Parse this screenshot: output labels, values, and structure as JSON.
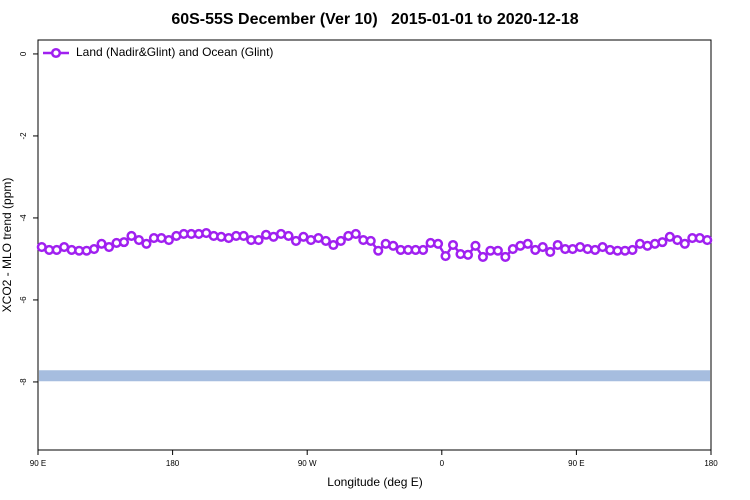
{
  "chart_data": {
    "type": "line",
    "title": "60S-55S December (Ver 10)   2015-01-01 to 2020-12-18",
    "xlabel": "Longitude (deg E)",
    "ylabel": "XCO2 - MLO trend (ppm)",
    "xlim": [
      90,
      540
    ],
    "ylim": [
      -9.66,
      0.34
    ],
    "xticks": [
      {
        "value": 90,
        "label": "90 E"
      },
      {
        "value": 180,
        "label": "180"
      },
      {
        "value": 270,
        "label": "90 W"
      },
      {
        "value": 360,
        "label": "0"
      },
      {
        "value": 450,
        "label": "90 E"
      },
      {
        "value": 540,
        "label": "180"
      }
    ],
    "yticks": [
      0,
      -2,
      -4,
      -6,
      -8
    ],
    "legend": "top-left",
    "band": {
      "value": -7.85,
      "color": "#a6bddf"
    },
    "x": [
      92.5,
      97.5,
      102.5,
      107.5,
      112.5,
      117.5,
      122.5,
      127.5,
      132.5,
      137.5,
      142.5,
      147.5,
      152.5,
      157.5,
      162.5,
      167.5,
      172.5,
      177.5,
      182.5,
      187.5,
      192.5,
      197.5,
      202.5,
      207.5,
      212.5,
      217.5,
      222.5,
      227.5,
      232.5,
      237.5,
      242.5,
      247.5,
      252.5,
      257.5,
      262.5,
      267.5,
      272.5,
      277.5,
      282.5,
      287.5,
      292.5,
      297.5,
      302.5,
      307.5,
      312.5,
      317.5,
      322.5,
      327.5,
      332.5,
      337.5,
      342.5,
      347.5,
      352.5,
      357.5,
      362.5,
      367.5,
      372.5,
      377.5,
      382.5,
      387.5,
      392.5,
      397.5,
      402.5,
      407.5,
      412.5,
      417.5,
      422.5,
      427.5,
      432.5,
      437.5,
      442.5,
      447.5,
      452.5,
      457.5,
      462.5,
      467.5,
      472.5,
      477.5,
      482.5,
      487.5,
      492.5,
      497.5,
      502.5,
      507.5,
      512.5,
      517.5,
      522.5,
      527.5,
      532.5,
      537.5
    ],
    "series": [
      {
        "name": "Land (Nadir&Glint) and Ocean (Glint)",
        "color": "#a020f0",
        "values": [
          -4.71,
          -4.78,
          -4.78,
          -4.71,
          -4.78,
          -4.8,
          -4.8,
          -4.76,
          -4.63,
          -4.71,
          -4.61,
          -4.59,
          -4.44,
          -4.54,
          -4.63,
          -4.49,
          -4.49,
          -4.54,
          -4.44,
          -4.39,
          -4.39,
          -4.39,
          -4.37,
          -4.44,
          -4.46,
          -4.49,
          -4.44,
          -4.44,
          -4.54,
          -4.54,
          -4.41,
          -4.46,
          -4.39,
          -4.44,
          -4.56,
          -4.46,
          -4.54,
          -4.49,
          -4.56,
          -4.66,
          -4.56,
          -4.44,
          -4.39,
          -4.54,
          -4.56,
          -4.8,
          -4.63,
          -4.68,
          -4.78,
          -4.78,
          -4.78,
          -4.78,
          -4.61,
          -4.63,
          -4.93,
          -4.66,
          -4.88,
          -4.9,
          -4.68,
          -4.95,
          -4.8,
          -4.8,
          -4.95,
          -4.76,
          -4.68,
          -4.63,
          -4.78,
          -4.71,
          -4.83,
          -4.66,
          -4.76,
          -4.76,
          -4.71,
          -4.76,
          -4.78,
          -4.71,
          -4.78,
          -4.8,
          -4.8,
          -4.78,
          -4.63,
          -4.68,
          -4.63,
          -4.59,
          -4.46,
          -4.54,
          -4.63,
          -4.49,
          -4.49,
          -4.54
        ]
      }
    ]
  }
}
